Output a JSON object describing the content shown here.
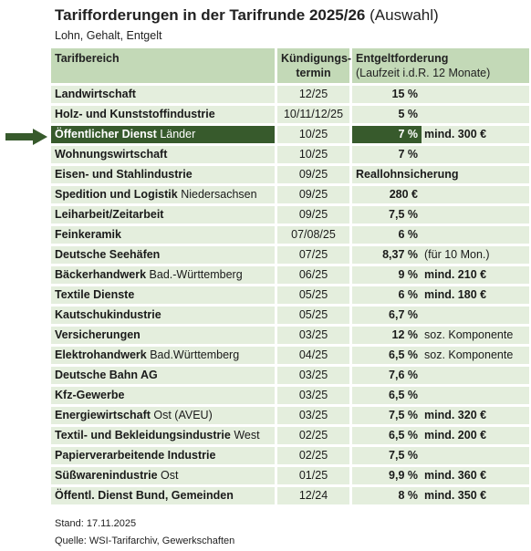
{
  "title": {
    "main": "Tarifforderungen in der Tarifrunde 2025/26",
    "suffix": "(Auswahl)"
  },
  "subtitle": "Lohn, Gehalt, Entgelt",
  "header": {
    "col1": "Tarifbereich",
    "col2_line1": "Kündigungs-",
    "col2_line2": "termin",
    "col3_line1": "Entgeltforderung",
    "col3_line2": "(Laufzeit i.d.R. 12 Monate)"
  },
  "rows": [
    {
      "name": "Landwirtschaft",
      "region": "",
      "termin": "12/25",
      "forderung": "15 %",
      "zusatz_bold": "",
      "zusatz": "",
      "highlight": false
    },
    {
      "name": "Holz- und Kunststoffindustrie",
      "region": "",
      "termin": "10/11/12/25",
      "forderung": "5 %",
      "zusatz_bold": "",
      "zusatz": "",
      "highlight": false
    },
    {
      "name": "Öffentlicher Dienst",
      "region": "Länder",
      "termin": "10/25",
      "forderung": "7 %",
      "zusatz_bold": "mind. 300 €",
      "zusatz": "",
      "highlight": true
    },
    {
      "name": "Wohnungswirtschaft",
      "region": "",
      "termin": "10/25",
      "forderung": "7 %",
      "zusatz_bold": "",
      "zusatz": "",
      "highlight": false
    },
    {
      "name": "Eisen- und Stahlindustrie",
      "region": "",
      "termin": "09/25",
      "forderung": "Reallohnsicherung",
      "zusatz_bold": "",
      "zusatz": "",
      "highlight": false,
      "left_align": true
    },
    {
      "name": "Spedition und Logistik",
      "region": "Niedersachsen",
      "termin": "09/25",
      "forderung": "280 €",
      "zusatz_bold": "",
      "zusatz": "",
      "highlight": false
    },
    {
      "name": "Leiharbeit/Zeitarbeit",
      "region": "",
      "termin": "09/25",
      "forderung": "7,5 %",
      "zusatz_bold": "",
      "zusatz": "",
      "highlight": false
    },
    {
      "name": "Feinkeramik",
      "region": "",
      "termin": "07/08/25",
      "forderung": "6 %",
      "zusatz_bold": "",
      "zusatz": "",
      "highlight": false
    },
    {
      "name": "Deutsche Seehäfen",
      "region": "",
      "termin": "07/25",
      "forderung": "8,37 %",
      "zusatz_bold": "",
      "zusatz": "(für 10 Mon.)",
      "highlight": false
    },
    {
      "name": "Bäckerhandwerk",
      "region": "Bad.-Württemberg",
      "termin": "06/25",
      "forderung": "9 %",
      "zusatz_bold": "mind. 210 €",
      "zusatz": "",
      "highlight": false
    },
    {
      "name": "Textile Dienste",
      "region": "",
      "termin": "05/25",
      "forderung": "6 %",
      "zusatz_bold": "mind. 180 €",
      "zusatz": "",
      "highlight": false
    },
    {
      "name": "Kautschukindustrie",
      "region": "",
      "termin": "05/25",
      "forderung": "6,7 %",
      "zusatz_bold": "",
      "zusatz": "",
      "highlight": false
    },
    {
      "name": "Versicherungen",
      "region": "",
      "termin": "03/25",
      "forderung": "12 %",
      "zusatz_bold": "",
      "zusatz": "soz. Komponente",
      "highlight": false
    },
    {
      "name": "Elektrohandwerk",
      "region": "Bad.Württemberg",
      "termin": "04/25",
      "forderung": "6,5 %",
      "zusatz_bold": "",
      "zusatz": "soz. Komponente",
      "highlight": false
    },
    {
      "name": "Deutsche Bahn AG",
      "region": "",
      "termin": "03/25",
      "forderung": "7,6 %",
      "zusatz_bold": "",
      "zusatz": "",
      "highlight": false
    },
    {
      "name": "Kfz-Gewerbe",
      "region": "",
      "termin": "03/25",
      "forderung": "6,5 %",
      "zusatz_bold": "",
      "zusatz": "",
      "highlight": false
    },
    {
      "name": "Energiewirtschaft",
      "region": "Ost (AVEU)",
      "termin": "03/25",
      "forderung": "7,5 %",
      "zusatz_bold": "mind. 320 €",
      "zusatz": "",
      "highlight": false
    },
    {
      "name": "Textil- und Bekleidungsindustrie",
      "region": "West",
      "termin": "02/25",
      "forderung": "6,5 %",
      "zusatz_bold": "mind. 200 €",
      "zusatz": "",
      "highlight": false
    },
    {
      "name": "Papierverarbeitende Industrie",
      "region": "",
      "termin": "02/25",
      "forderung": "7,5 %",
      "zusatz_bold": "",
      "zusatz": "",
      "highlight": false
    },
    {
      "name": "Süßwarenindustrie",
      "region": "Ost",
      "termin": "01/25",
      "forderung": "9,9 %",
      "zusatz_bold": "mind. 360 €",
      "zusatz": "",
      "highlight": false
    },
    {
      "name": "Öffentl. Dienst Bund, Gemeinden",
      "region": "",
      "termin": "12/24",
      "forderung": "8 %",
      "zusatz_bold": "mind. 350 €",
      "zusatz": "",
      "highlight": false
    }
  ],
  "footer": {
    "stand": "Stand: 17.11.2025",
    "quelle": "Quelle: WSI-Tarifarchiv, Gewerkschaften"
  },
  "colors": {
    "header_bg": "#c3d9b7",
    "row_bg": "#e4eedd",
    "highlight_bg": "#375a2c",
    "arrow": "#375a2c"
  },
  "icons": {
    "pointer": "right-arrow-icon"
  }
}
